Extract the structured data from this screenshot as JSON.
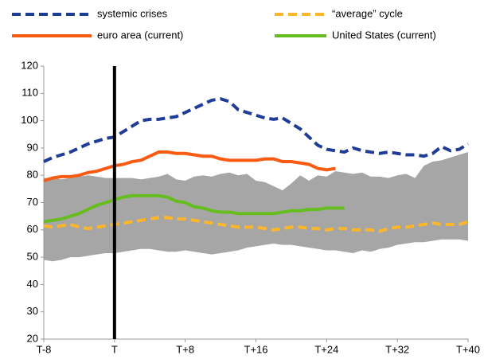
{
  "chart_data": {
    "type": "line",
    "x": [
      -8,
      -7,
      -6,
      -5,
      -4,
      -3,
      -2,
      -1,
      0,
      1,
      2,
      3,
      4,
      5,
      6,
      7,
      8,
      9,
      10,
      11,
      12,
      13,
      14,
      15,
      16,
      17,
      18,
      19,
      20,
      21,
      22,
      23,
      24,
      25,
      26,
      27,
      28,
      29,
      30,
      31,
      32,
      33,
      34,
      35,
      36,
      37,
      38,
      39,
      40
    ],
    "series": [
      {
        "name": "systemic crises",
        "color": "#1f3c96",
        "dash": true,
        "values": [
          85,
          86.5,
          87.5,
          88.5,
          90,
          91.5,
          92.5,
          93.5,
          94,
          96,
          98,
          100,
          100.5,
          100.5,
          101,
          101.5,
          103,
          104.5,
          106,
          107.5,
          108,
          107,
          104,
          103,
          102,
          101,
          100.5,
          101,
          99,
          97,
          94,
          91,
          89.5,
          89,
          88.5,
          90,
          89,
          88.5,
          88,
          88.5,
          88,
          87.5,
          87.5,
          87,
          88,
          90.5,
          89,
          89.5,
          91.5
        ]
      },
      {
        "name": "“average” cycle",
        "color": "#fcb62c",
        "dash": true,
        "values": [
          61.5,
          61,
          61.5,
          62,
          61,
          60.5,
          61,
          61.5,
          62,
          62.5,
          63,
          63.5,
          64,
          64.5,
          64.5,
          64,
          64,
          63.5,
          63,
          62.5,
          62,
          61.5,
          61,
          61,
          61,
          60.5,
          60,
          60.5,
          61,
          61,
          60.5,
          60.5,
          60,
          60.5,
          60.5,
          60,
          60,
          60,
          59.5,
          60.5,
          61,
          61,
          61.5,
          62,
          62.5,
          62,
          62,
          62,
          63
        ]
      },
      {
        "name": "euro area (current)",
        "color": "#fa5b12",
        "dash": false,
        "values": [
          78,
          79,
          79.5,
          79.5,
          80,
          81,
          81.5,
          82.5,
          83.5,
          84,
          85,
          85.5,
          87,
          88.5,
          88.5,
          88,
          88,
          87.5,
          87,
          87,
          86,
          85.5,
          85.5,
          85.5,
          85.5,
          86,
          86,
          85,
          85,
          84.5,
          84,
          82.5,
          82,
          82.5,
          null,
          null,
          null,
          null,
          null,
          null,
          null,
          null,
          null,
          null,
          null,
          null,
          null,
          null,
          null
        ]
      },
      {
        "name": "United States (current)",
        "color": "#66bd1f",
        "dash": false,
        "values": [
          63,
          63.5,
          64,
          65,
          66,
          67.5,
          69,
          70,
          71,
          72,
          72.5,
          72.5,
          72.5,
          72.5,
          72,
          70.5,
          70,
          68.5,
          68,
          67,
          66.5,
          66.5,
          66,
          66,
          66,
          66,
          66,
          66.5,
          67,
          67,
          67.5,
          67.5,
          68,
          68,
          68,
          null,
          null,
          null,
          null,
          null,
          null,
          null,
          null,
          null,
          null,
          null,
          null,
          null,
          null
        ]
      }
    ],
    "band": {
      "color": "#a6a6a6",
      "upper": [
        79,
        79,
        78.5,
        79,
        79.5,
        80,
        79.5,
        79,
        79,
        79,
        79,
        78.5,
        79,
        79.5,
        80.5,
        78.5,
        78,
        79.5,
        80,
        79.5,
        80.5,
        81,
        80,
        80.5,
        78,
        77.5,
        76,
        74.5,
        77,
        80,
        78,
        80,
        79.5,
        81.5,
        81,
        80.5,
        81,
        79.5,
        79.5,
        79,
        80,
        80.5,
        79,
        83.5,
        85,
        85.5,
        86.5,
        87.5,
        88.5
      ],
      "lower": [
        49,
        48.5,
        49,
        50,
        50,
        50.5,
        51,
        51.5,
        51.5,
        52,
        52.5,
        53,
        53,
        52.5,
        52,
        52,
        52.5,
        52,
        51.5,
        51,
        51.5,
        52,
        52.5,
        53.5,
        54,
        54.5,
        55,
        54.5,
        54.5,
        54,
        53.5,
        53,
        52.5,
        52.5,
        52,
        51.5,
        52.5,
        52,
        53,
        53.5,
        54.5,
        55,
        55.5,
        55.5,
        56,
        56.5,
        56.5,
        56.5,
        56
      ]
    },
    "vline": 0,
    "xlim": [
      -8,
      40
    ],
    "xticks": [
      {
        "value": -8,
        "label": "T-8"
      },
      {
        "value": 0,
        "label": "T"
      },
      {
        "value": 8,
        "label": "T+8"
      },
      {
        "value": 16,
        "label": "T+16"
      },
      {
        "value": 24,
        "label": "T+24"
      },
      {
        "value": 32,
        "label": "T+32"
      },
      {
        "value": 40,
        "label": "T+40"
      }
    ],
    "ylim": [
      20,
      120
    ],
    "yticks": [
      20,
      30,
      40,
      50,
      60,
      70,
      80,
      90,
      100,
      110,
      120
    ],
    "grid": false
  }
}
